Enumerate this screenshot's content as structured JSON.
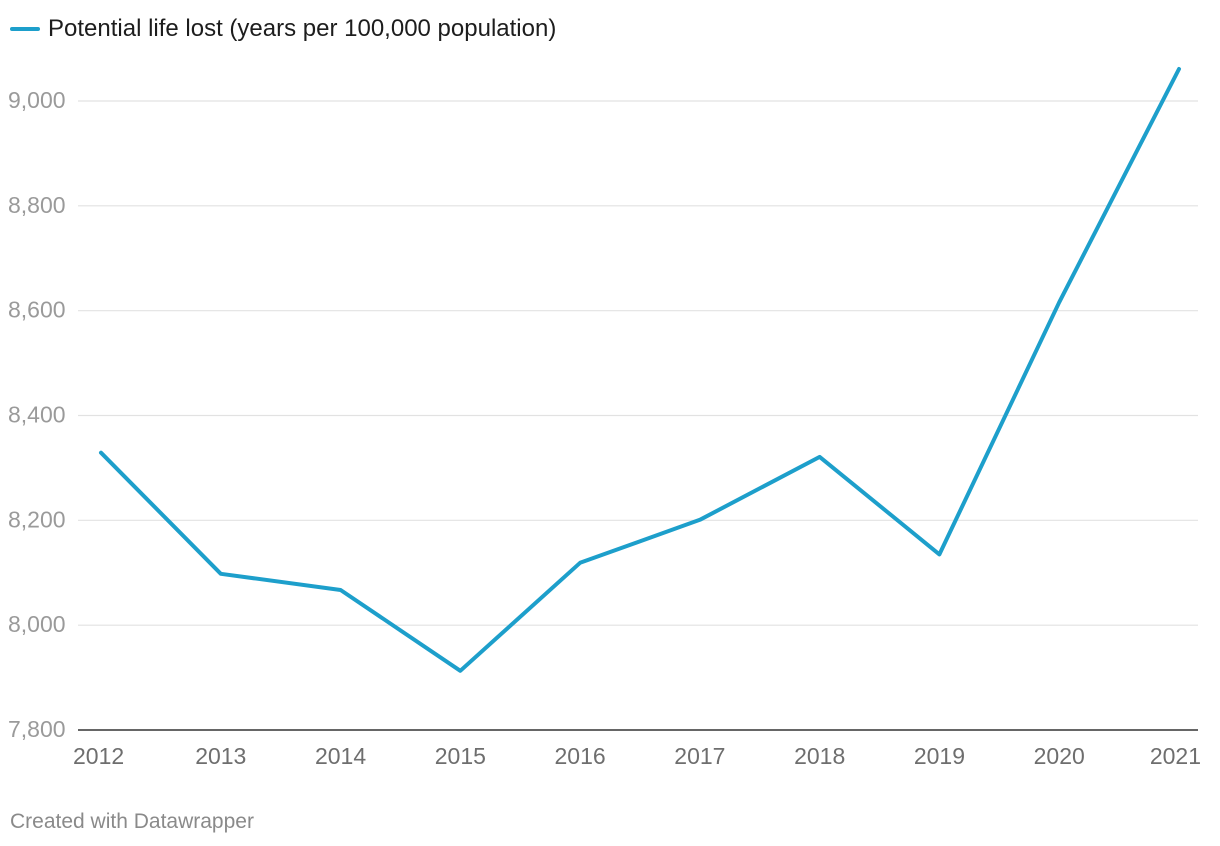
{
  "chart_data": {
    "type": "line",
    "title": "",
    "xlabel": "",
    "ylabel": "",
    "x": [
      "2012",
      "2013",
      "2014",
      "2015",
      "2016",
      "2017",
      "2018",
      "2019",
      "2020",
      "2021"
    ],
    "series": [
      {
        "name": "Potential life lost (years per 100,000 population)",
        "values": [
          8329,
          8098,
          8067,
          7913,
          8119,
          8201,
          8321,
          8135,
          8616,
          9061
        ],
        "color": "#1d9fcb"
      }
    ],
    "ylim": [
      7800,
      9000
    ],
    "yticks": [
      7800,
      8000,
      8200,
      8400,
      8600,
      8800,
      9000
    ],
    "ytick_labels": [
      "7,800",
      "8,000",
      "8,200",
      "8,400",
      "8,600",
      "8,800",
      "9,000"
    ],
    "grid": true,
    "legend": "top-left"
  },
  "footer": {
    "credit": "Created with Datawrapper"
  },
  "colors": {
    "line": "#1d9fcb",
    "grid": "#e2e2e2",
    "axis": "#333333"
  }
}
